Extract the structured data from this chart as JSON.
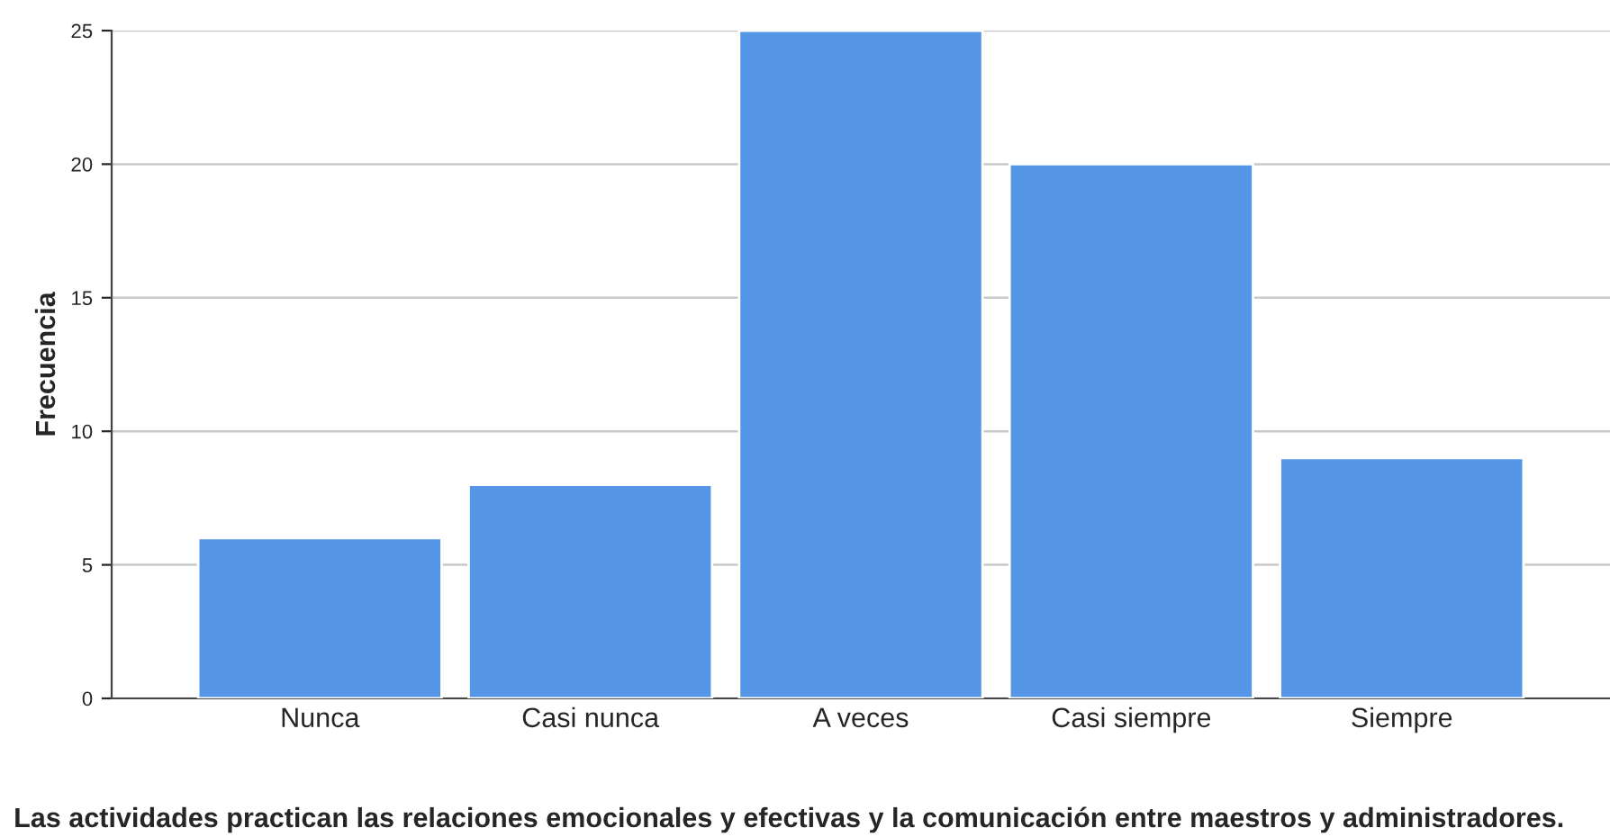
{
  "chart_data": {
    "type": "bar",
    "categories": [
      "Nunca",
      "Casi nunca",
      "A veces",
      "Casi siempre",
      "Siempre"
    ],
    "values": [
      6,
      8,
      25,
      20,
      9
    ],
    "color": "#5596e6",
    "xlabel": "Las actividades practican las relaciones emocionales y efectivas y la comunicación entre maestros y administradores.",
    "ylabel": "Frecuencia",
    "ylim": [
      0,
      25
    ],
    "yticks": [
      0,
      5,
      10,
      15,
      20,
      25
    ],
    "grid": "y"
  }
}
